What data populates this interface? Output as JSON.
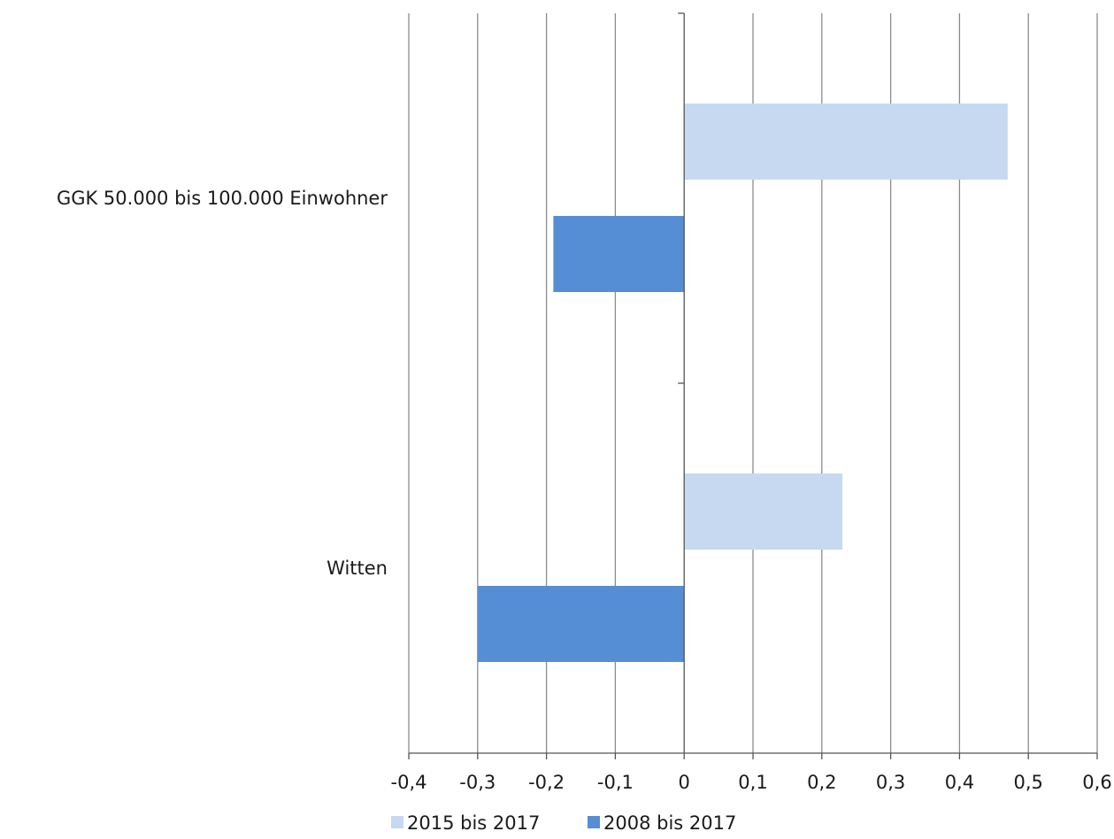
{
  "chart_data": {
    "type": "bar",
    "orientation": "horizontal",
    "categories": [
      "GGK 50.000 bis 100.000 Einwohner",
      "Witten"
    ],
    "series": [
      {
        "name": "2015 bis 2017",
        "values": [
          0.47,
          0.23
        ],
        "color": "#c6d9f1"
      },
      {
        "name": "2008 bis 2017",
        "values": [
          -0.19,
          -0.3
        ],
        "color": "#558ed5"
      }
    ],
    "xlim": [
      -0.4,
      0.6
    ],
    "x_ticks": [
      -0.4,
      -0.3,
      -0.2,
      -0.1,
      0,
      0.1,
      0.2,
      0.3,
      0.4,
      0.5,
      0.6
    ],
    "tick_labels": [
      "-0,4",
      "-0,3",
      "-0,2",
      "-0,1",
      "0",
      "0,1",
      "0,2",
      "0,3",
      "0,4",
      "0,5",
      "0,6"
    ],
    "grid": true,
    "legend_position": "bottom",
    "title": "",
    "xlabel": "",
    "ylabel": ""
  }
}
